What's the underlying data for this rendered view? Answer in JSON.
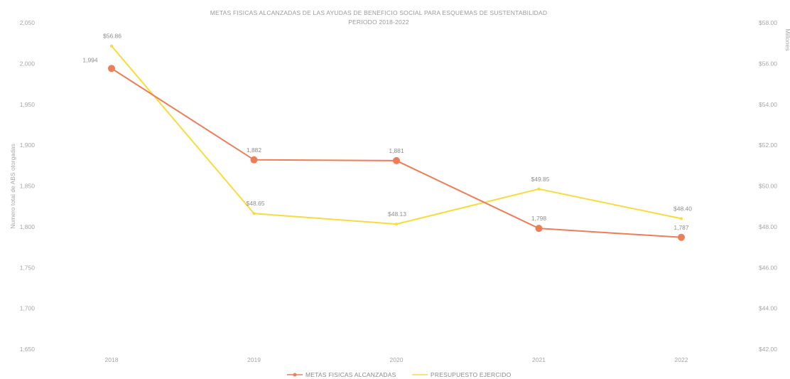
{
  "chart_data": {
    "type": "line",
    "title_line1": "METAS FISICAS ALCANZADAS DE LAS AYUDAS DE BENEFICIO SOCIAL PARA ESQUEMAS DE SUSTENTABILIDAD",
    "title_line2": "PERIODO 2018-2022",
    "ylabel": "Numero total de ABS otorgadas",
    "y2label": "Millones",
    "categories": [
      "2018",
      "2019",
      "2020",
      "2021",
      "2022"
    ],
    "y_ticks": [
      "1,650",
      "1,700",
      "1,750",
      "1,800",
      "1,850",
      "1,900",
      "1,950",
      "2,000",
      "2,050"
    ],
    "y_tick_values": [
      1650,
      1700,
      1750,
      1800,
      1850,
      1900,
      1950,
      2000,
      2050
    ],
    "y2_ticks": [
      "$42.00",
      "$44.00",
      "$46.00",
      "$48.00",
      "$50.00",
      "$52.00",
      "$54.00",
      "$56.00",
      "$58.00"
    ],
    "y2_tick_values": [
      42,
      44,
      46,
      48,
      50,
      52,
      54,
      56,
      58
    ],
    "ylim": [
      1650,
      2050
    ],
    "y2lim": [
      42,
      58
    ],
    "grid": false,
    "legend_position": "bottom",
    "series": [
      {
        "name": "METAS FISICAS ALCANZADAS",
        "axis": "left",
        "color": "#ee7d57",
        "values": [
          1994,
          1882,
          1881,
          1798,
          1787
        ],
        "labels": [
          "1,994",
          "1,882",
          "1,881",
          "1,798",
          "1,787"
        ]
      },
      {
        "name": "PRESUPUESTO EJERCIDO",
        "axis": "right",
        "color": "#f7dc3b",
        "values": [
          56.86,
          48.65,
          48.13,
          49.85,
          48.4
        ],
        "labels": [
          "$56.86",
          "$48.65",
          "$48.13",
          "$49.85",
          "$48.40"
        ]
      }
    ]
  }
}
